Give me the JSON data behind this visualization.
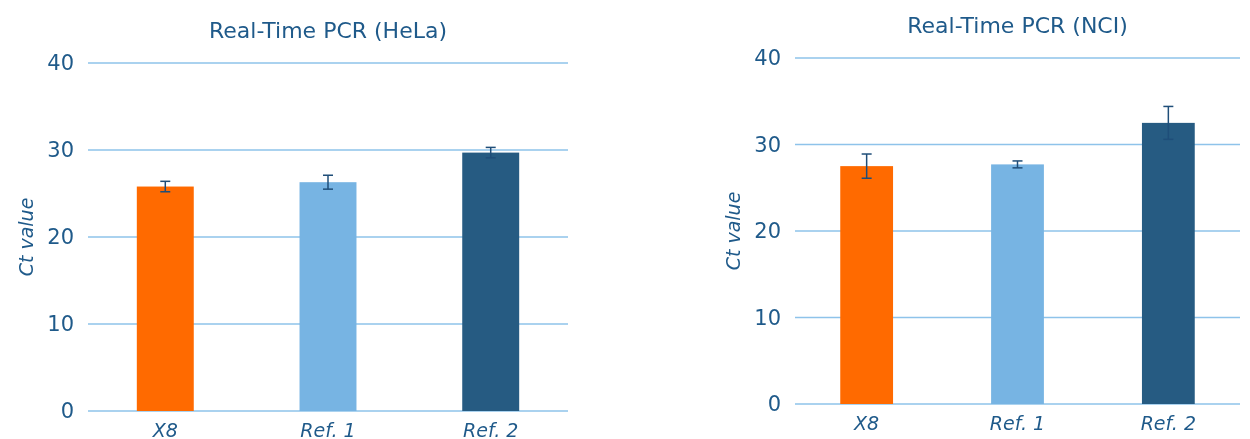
{
  "chart_data": [
    {
      "type": "bar",
      "title": "Real-Time PCR (HeLa)",
      "ylabel": "Ct value",
      "categories": [
        "X8",
        "Ref. 1",
        "Ref. 2"
      ],
      "values": [
        25.8,
        26.3,
        29.7
      ],
      "errors": [
        0.6,
        0.8,
        0.6
      ],
      "colors": [
        "#ff6a00",
        "#77b4e3",
        "#265b82"
      ],
      "ylim": [
        0,
        40
      ],
      "yticks": [
        0,
        10,
        20,
        30,
        40
      ],
      "grid": "y"
    },
    {
      "type": "bar",
      "title": "Real-Time PCR (NCI)",
      "ylabel": "Ct value",
      "categories": [
        "X8",
        "Ref. 1",
        "Ref. 2"
      ],
      "values": [
        27.5,
        27.7,
        32.5
      ],
      "errors": [
        1.4,
        0.4,
        1.9
      ],
      "colors": [
        "#ff6a00",
        "#77b4e3",
        "#265b82"
      ],
      "ylim": [
        0,
        40
      ],
      "yticks": [
        0,
        10,
        20,
        30,
        40
      ],
      "grid": "y"
    }
  ]
}
